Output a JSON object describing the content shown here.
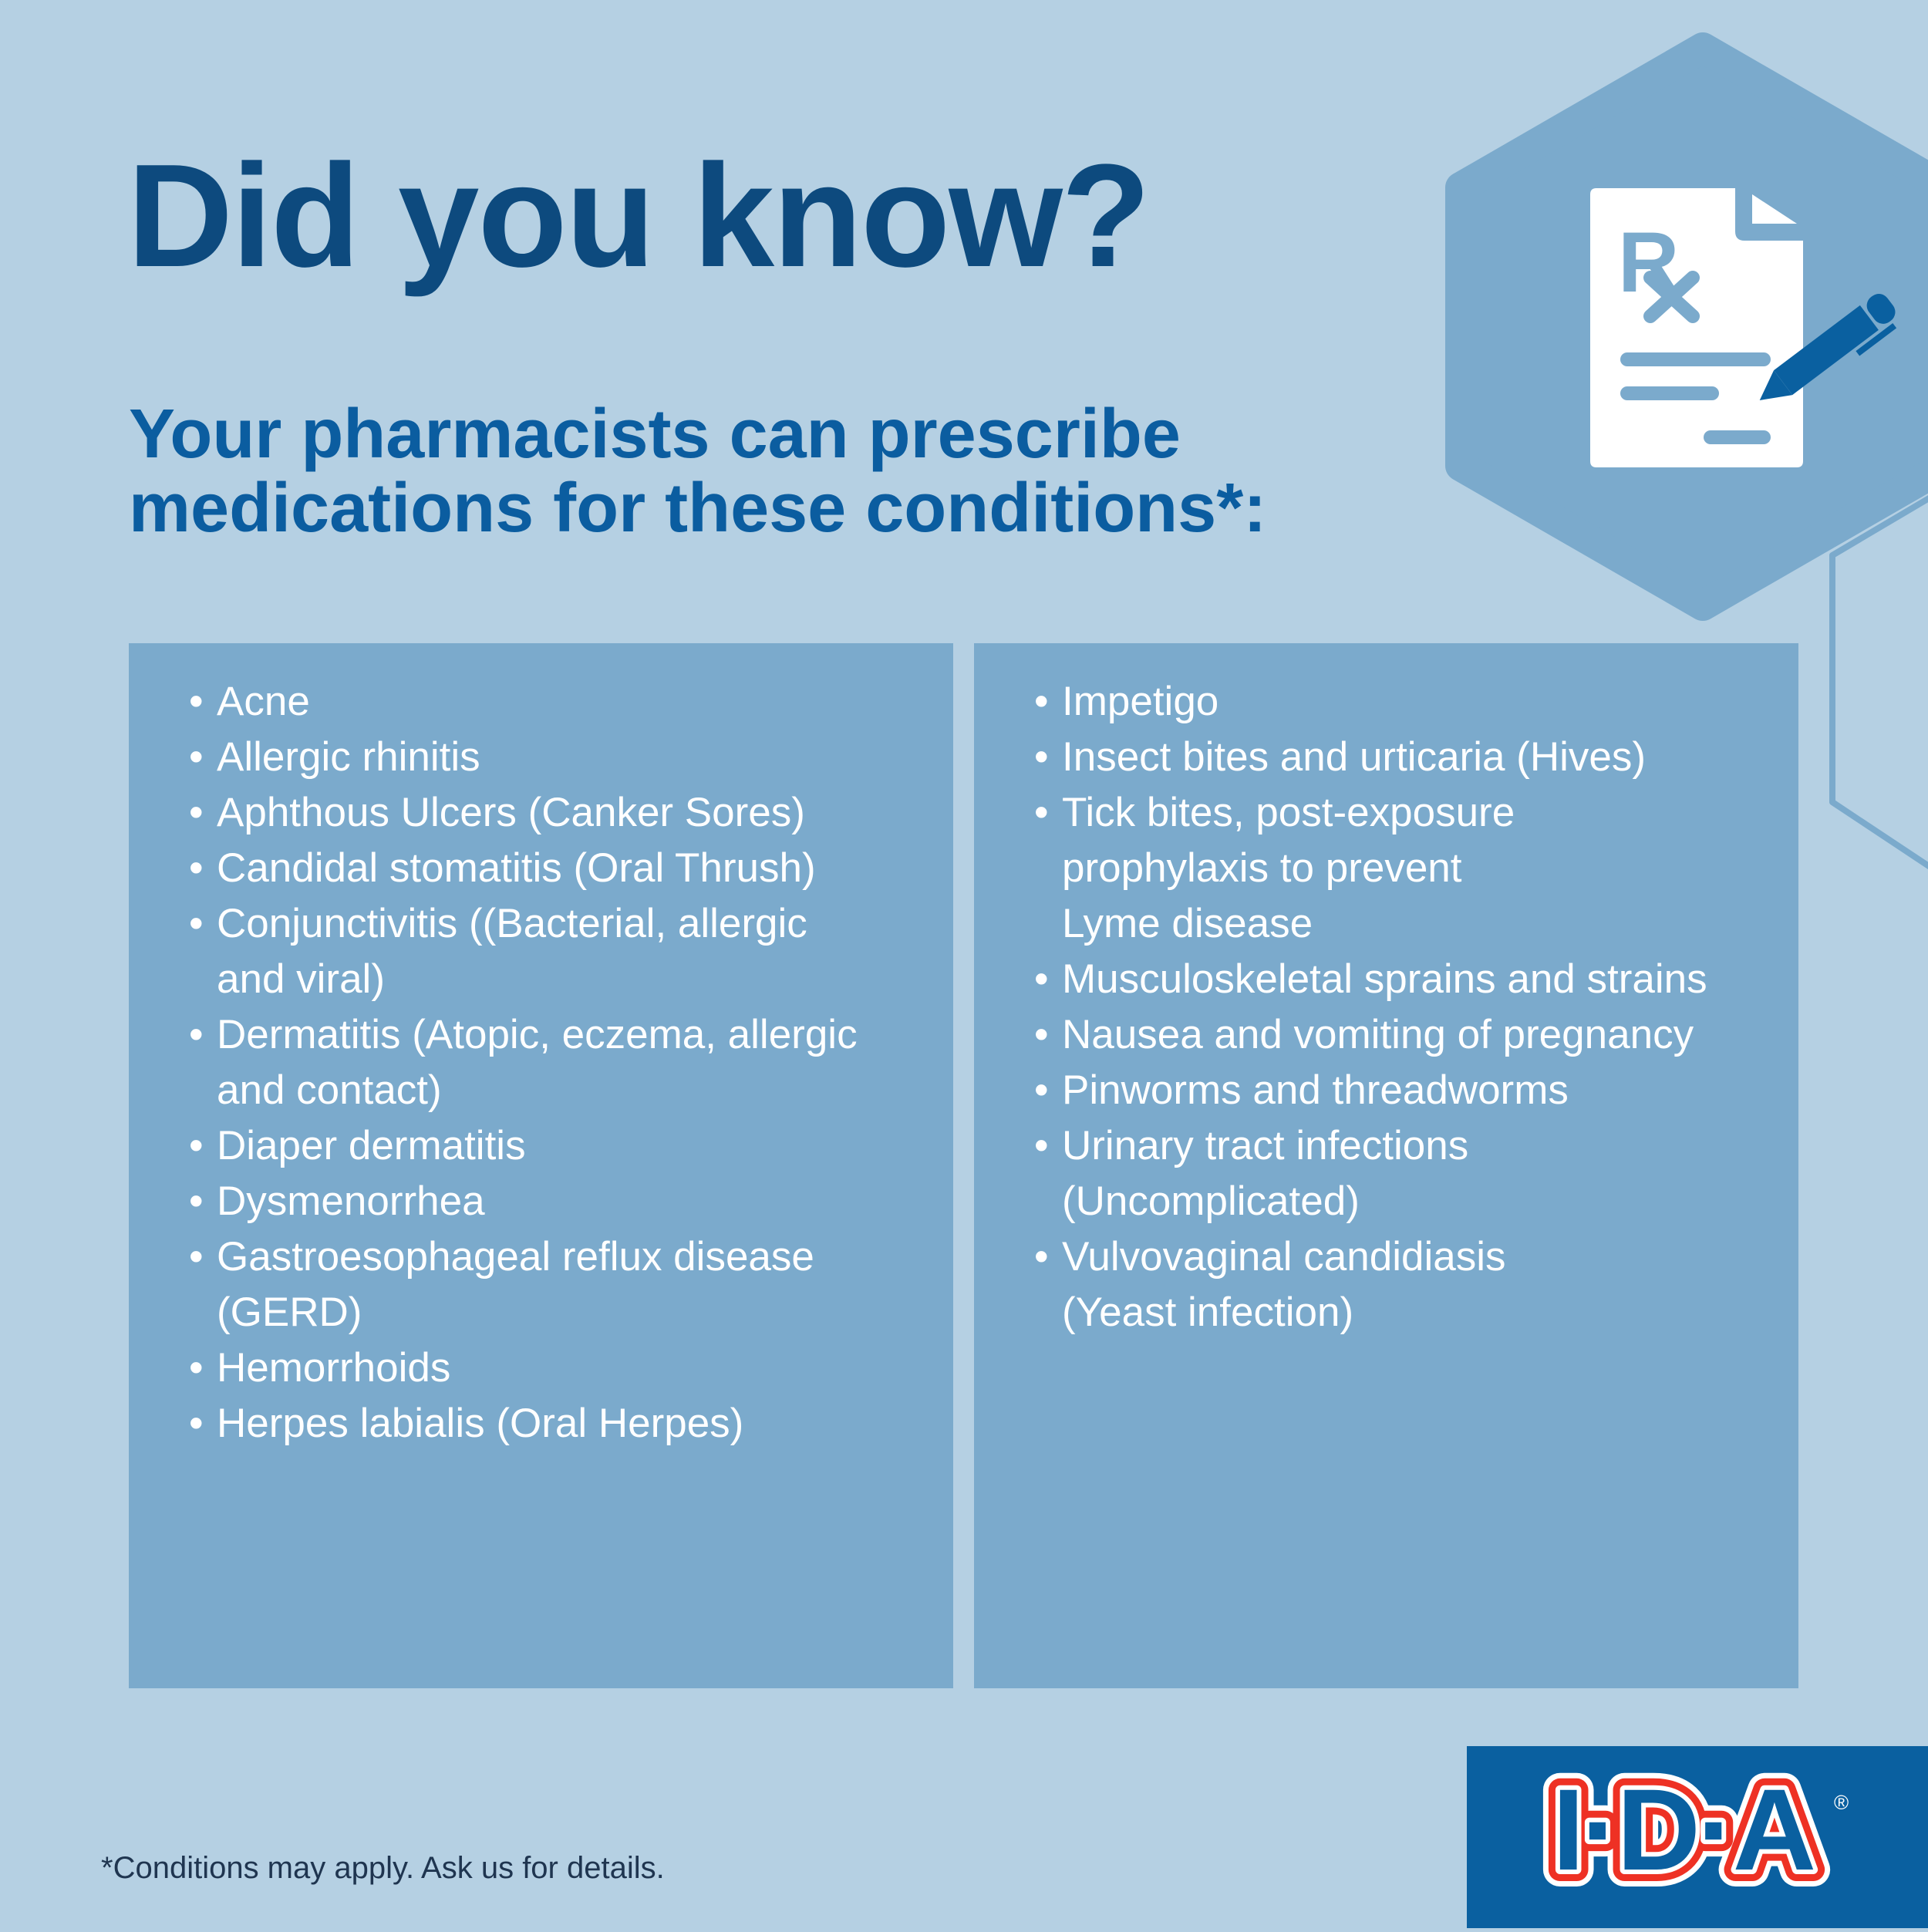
{
  "header": {
    "title": "Did you know?",
    "subtitle_line1": "Your pharmacists can prescribe",
    "subtitle_line2": "medications for these conditions*:"
  },
  "conditions_left": [
    [
      "Acne"
    ],
    [
      "Allergic rhinitis"
    ],
    [
      "Aphthous Ulcers (Canker Sores)"
    ],
    [
      "Candidal stomatitis (Oral Thrush)"
    ],
    [
      "Conjunctivitis ((Bacterial, allergic",
      "and viral)"
    ],
    [
      "Dermatitis (Atopic, eczema, allergic",
      "and contact)"
    ],
    [
      "Diaper dermatitis"
    ],
    [
      "Dysmenorrhea"
    ],
    [
      "Gastroesophageal reflux disease",
      "(GERD)"
    ],
    [
      "Hemorrhoids"
    ],
    [
      "Herpes labialis (Oral Herpes)"
    ]
  ],
  "conditions_right": [
    [
      "Impetigo"
    ],
    [
      "Insect bites and urticaria (Hives)"
    ],
    [
      "Tick bites, post-exposure",
      "prophylaxis to prevent",
      "Lyme disease"
    ],
    [
      "Musculoskeletal sprains and strains"
    ],
    [
      "Nausea and vomiting of pregnancy"
    ],
    [
      "Pinworms and threadworms"
    ],
    [
      "Urinary tract infections",
      "(Uncomplicated)"
    ],
    [
      "Vulvovaginal candidiasis",
      "(Yeast infection)"
    ]
  ],
  "bullet": "•",
  "footnote": "*Conditions may apply. Ask us for details.",
  "logo": {
    "text": "I·D·A",
    "registered": "®"
  },
  "icons": {
    "hero": "prescription-pen-icon"
  },
  "colors": {
    "background": "#b5d0e3",
    "panel": "#7baacc",
    "title": "#0d4a7e",
    "subtitle": "#0b5da0",
    "brand_blue": "#0a60a0",
    "brand_red": "#ee3124"
  }
}
